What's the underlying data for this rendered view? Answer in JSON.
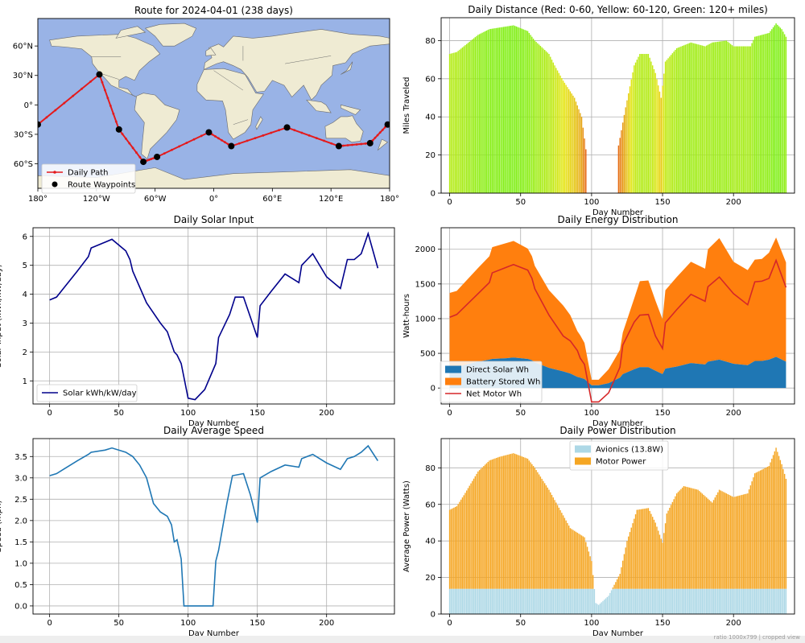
{
  "chart_data": [
    {
      "id": "route",
      "type": "map",
      "title": "Route for 2024-04-01 (238 days)",
      "xlim": [
        -180,
        180
      ],
      "ylim": [
        -85,
        88
      ],
      "xticks": [
        {
          "v": -180,
          "label": "180°"
        },
        {
          "v": -120,
          "label": "120°W"
        },
        {
          "v": -60,
          "label": "60°W"
        },
        {
          "v": 0,
          "label": "0°"
        },
        {
          "v": 60,
          "label": "60°E"
        },
        {
          "v": 120,
          "label": "120°E"
        },
        {
          "v": 180,
          "label": "180°"
        }
      ],
      "yticks": [
        {
          "v": 60,
          "label": "60°N"
        },
        {
          "v": 30,
          "label": "30°N"
        },
        {
          "v": 0,
          "label": "0°"
        },
        {
          "v": -30,
          "label": "30°S"
        },
        {
          "v": -60,
          "label": "60°S"
        }
      ],
      "waypoints": [
        [
          -180,
          -20
        ],
        [
          -117,
          31
        ],
        [
          -97,
          -25
        ],
        [
          -72,
          -58
        ],
        [
          -58,
          -53
        ],
        [
          -5,
          -28
        ],
        [
          18,
          -42
        ],
        [
          75,
          -23
        ],
        [
          128,
          -42
        ],
        [
          160,
          -39
        ],
        [
          178,
          -20
        ]
      ],
      "legend": [
        "Daily Path",
        "Route Waypoints"
      ],
      "colors": {
        "ocean": "#99b3e6",
        "land": "#efebd3",
        "path": "#e41a1c",
        "waypoint": "#000000"
      }
    },
    {
      "id": "distance",
      "type": "bar",
      "title": "Daily Distance (Red: 0-60, Yellow: 60-120, Green: 120+ miles)",
      "xlabel": "Day Number",
      "ylabel": "Miles Traveled",
      "xlim": [
        -6,
        243
      ],
      "ylim": [
        0,
        92
      ],
      "xticks": [
        0,
        50,
        100,
        150,
        200
      ],
      "yticks": [
        0,
        20,
        40,
        60,
        80
      ],
      "profile": [
        [
          0,
          73
        ],
        [
          5,
          74
        ],
        [
          10,
          77
        ],
        [
          20,
          83
        ],
        [
          28,
          86
        ],
        [
          45,
          88
        ],
        [
          55,
          85
        ],
        [
          60,
          80
        ],
        [
          70,
          73
        ],
        [
          74,
          67
        ],
        [
          80,
          59
        ],
        [
          88,
          50
        ],
        [
          93,
          40
        ],
        [
          96,
          23
        ],
        [
          97,
          0
        ],
        [
          118,
          0
        ],
        [
          119,
          25
        ],
        [
          124,
          45
        ],
        [
          130,
          67
        ],
        [
          134,
          73
        ],
        [
          140,
          73
        ],
        [
          145,
          63
        ],
        [
          149,
          50
        ],
        [
          152,
          69
        ],
        [
          160,
          76
        ],
        [
          170,
          79
        ],
        [
          180,
          77
        ],
        [
          185,
          79
        ],
        [
          195,
          80
        ],
        [
          200,
          77
        ],
        [
          212,
          77
        ],
        [
          215,
          82
        ],
        [
          225,
          84
        ],
        [
          230,
          89
        ],
        [
          234,
          86
        ],
        [
          237,
          82
        ]
      ]
    },
    {
      "id": "solar",
      "type": "line",
      "title": "Daily Solar Input",
      "xlabel": "Day Number",
      "ylabel": "Solar Input (kWh/kW/day)",
      "xlim": [
        -12,
        249
      ],
      "ylim": [
        0.2,
        6.3
      ],
      "xticks": [
        0,
        50,
        100,
        150,
        200
      ],
      "yticks": [
        1,
        2,
        3,
        4,
        5,
        6
      ],
      "legend": [
        "Solar kWh/kW/day"
      ],
      "x": [
        0,
        5,
        10,
        20,
        28,
        30,
        40,
        45,
        55,
        58,
        60,
        70,
        80,
        85,
        90,
        92,
        95,
        100,
        105,
        112,
        120,
        122,
        130,
        134,
        140,
        145,
        150,
        152,
        160,
        170,
        180,
        182,
        190,
        200,
        210,
        215,
        220,
        225,
        230,
        237
      ],
      "values": [
        3.8,
        3.9,
        4.2,
        4.8,
        5.3,
        5.6,
        5.8,
        5.9,
        5.5,
        5.2,
        4.8,
        3.7,
        3.0,
        2.7,
        2.0,
        1.9,
        1.6,
        0.4,
        0.35,
        0.7,
        1.6,
        2.5,
        3.3,
        3.9,
        3.9,
        3.2,
        2.5,
        3.6,
        4.1,
        4.7,
        4.4,
        5.0,
        5.4,
        4.6,
        4.2,
        5.2,
        5.2,
        5.4,
        6.1,
        4.9
      ]
    },
    {
      "id": "energy",
      "type": "area",
      "title": "Daily Energy Distribution",
      "xlabel": "Day Number",
      "ylabel": "Watt-hours",
      "xlim": [
        -6,
        243
      ],
      "ylim": [
        -230,
        2310
      ],
      "xticks": [
        0,
        50,
        100,
        150,
        200
      ],
      "yticks": [
        0,
        500,
        1000,
        1500,
        2000
      ],
      "x": [
        0,
        5,
        10,
        20,
        28,
        30,
        40,
        45,
        55,
        58,
        60,
        70,
        80,
        85,
        90,
        92,
        95,
        100,
        105,
        112,
        120,
        122,
        130,
        134,
        140,
        145,
        150,
        152,
        160,
        170,
        180,
        182,
        190,
        200,
        210,
        215,
        220,
        225,
        230,
        237
      ],
      "series": [
        {
          "name": "Direct Solar Wh",
          "color": "#1f77b4",
          "values": [
            290,
            300,
            330,
            380,
            410,
            420,
            430,
            440,
            420,
            400,
            370,
            290,
            240,
            210,
            160,
            150,
            130,
            40,
            40,
            70,
            150,
            200,
            270,
            300,
            300,
            250,
            200,
            280,
            310,
            360,
            340,
            380,
            410,
            350,
            330,
            390,
            390,
            410,
            450,
            380
          ]
        },
        {
          "name": "Battery Stored Wh",
          "color": "#ff7f0e",
          "values": [
            1080,
            1100,
            1180,
            1350,
            1490,
            1610,
            1660,
            1680,
            1590,
            1500,
            1390,
            1120,
            950,
            840,
            660,
            610,
            520,
            80,
            80,
            200,
            400,
            600,
            1020,
            1240,
            1250,
            1010,
            790,
            1130,
            1290,
            1460,
            1380,
            1620,
            1750,
            1470,
            1370,
            1460,
            1470,
            1540,
            1720,
            1430
          ]
        },
        {
          "name": "Net Motor Wh",
          "color": "#d62728",
          "values": [
            1020,
            1060,
            1160,
            1360,
            1520,
            1660,
            1740,
            1780,
            1700,
            1580,
            1430,
            1050,
            750,
            680,
            540,
            430,
            340,
            -200,
            -200,
            -70,
            300,
            620,
            950,
            1050,
            1060,
            750,
            570,
            940,
            1130,
            1350,
            1250,
            1460,
            1600,
            1360,
            1200,
            1530,
            1540,
            1580,
            1840,
            1450
          ]
        }
      ]
    },
    {
      "id": "speed",
      "type": "line",
      "title": "Daily Average Speed",
      "xlabel": "Day Number",
      "ylabel": "Speed (mph)",
      "xlim": [
        -12,
        249
      ],
      "ylim": [
        -0.19,
        3.92
      ],
      "xticks": [
        0,
        50,
        100,
        150,
        200
      ],
      "yticks": [
        0.0,
        0.5,
        1.0,
        1.5,
        2.0,
        2.5,
        3.0,
        3.5
      ],
      "x": [
        0,
        5,
        10,
        20,
        28,
        30,
        40,
        45,
        55,
        60,
        65,
        70,
        75,
        80,
        85,
        88,
        90,
        92,
        95,
        97,
        100,
        118,
        120,
        122,
        128,
        132,
        140,
        145,
        150,
        152,
        160,
        170,
        180,
        182,
        190,
        200,
        210,
        215,
        220,
        225,
        230,
        237
      ],
      "values": [
        3.05,
        3.1,
        3.2,
        3.4,
        3.55,
        3.6,
        3.65,
        3.7,
        3.6,
        3.5,
        3.3,
        3.0,
        2.4,
        2.2,
        2.1,
        1.9,
        1.5,
        1.55,
        1.1,
        0.0,
        0.0,
        0.0,
        1.05,
        1.3,
        2.4,
        3.05,
        3.1,
        2.6,
        1.95,
        3.0,
        3.15,
        3.3,
        3.25,
        3.45,
        3.55,
        3.35,
        3.2,
        3.45,
        3.5,
        3.6,
        3.75,
        3.4
      ]
    },
    {
      "id": "power",
      "type": "stacked-bar",
      "title": "Daily Power Distribution",
      "xlabel": "Day Number",
      "ylabel": "Average Power (Watts)",
      "xlim": [
        -6,
        243
      ],
      "ylim": [
        0,
        96
      ],
      "xticks": [
        0,
        50,
        100,
        150,
        200
      ],
      "yticks": [
        0,
        20,
        40,
        60,
        80
      ],
      "avionics": 13.8,
      "legend": [
        "Avionics (13.8W)",
        "Motor Power"
      ],
      "colors": {
        "avionics": "#add8e6",
        "motor": "#f5a623"
      },
      "profile": [
        [
          0,
          57
        ],
        [
          5,
          59
        ],
        [
          10,
          65
        ],
        [
          20,
          78
        ],
        [
          28,
          84
        ],
        [
          35,
          86
        ],
        [
          45,
          88
        ],
        [
          55,
          85
        ],
        [
          60,
          80
        ],
        [
          70,
          68
        ],
        [
          80,
          54
        ],
        [
          85,
          47
        ],
        [
          95,
          42
        ],
        [
          100,
          29
        ],
        [
          103,
          6
        ],
        [
          105,
          5
        ],
        [
          112,
          10
        ],
        [
          120,
          22
        ],
        [
          125,
          40
        ],
        [
          132,
          57
        ],
        [
          140,
          58
        ],
        [
          145,
          50
        ],
        [
          150,
          39
        ],
        [
          153,
          55
        ],
        [
          160,
          66
        ],
        [
          165,
          70
        ],
        [
          175,
          68
        ],
        [
          185,
          61
        ],
        [
          190,
          68
        ],
        [
          200,
          64
        ],
        [
          210,
          66
        ],
        [
          215,
          77
        ],
        [
          225,
          81
        ],
        [
          230,
          91
        ],
        [
          234,
          82
        ],
        [
          237,
          74
        ]
      ]
    }
  ],
  "map_labels": {
    "path": "Daily Path",
    "waypoints": "Route Waypoints"
  },
  "footer": "ratio 1000x799 | cropped view"
}
